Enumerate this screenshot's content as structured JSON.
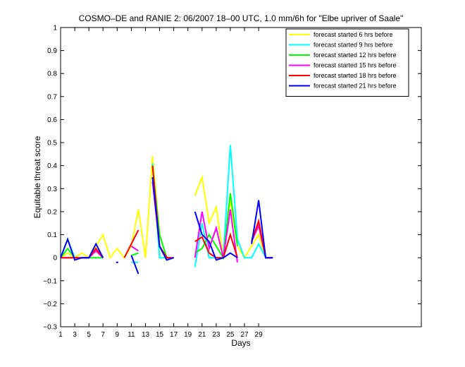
{
  "chart_data": {
    "type": "line",
    "title": "COSMO–DE and RANIE 2: 06/2007 18–00 UTC, 1.0 mm/6h for \"Elbe upriver of Saale\"",
    "xlabel": "Days",
    "ylabel": "Equitable threat score",
    "xlim": [
      1,
      52
    ],
    "ylim": [
      -0.3,
      1
    ],
    "xticks": [
      1,
      3,
      5,
      7,
      9,
      11,
      13,
      15,
      17,
      19,
      21,
      23,
      25,
      27,
      29
    ],
    "yticks": [
      -0.3,
      -0.2,
      -0.1,
      0,
      0.1,
      0.2,
      0.3,
      0.4,
      0.5,
      0.6,
      0.7,
      0.8,
      0.9,
      1
    ],
    "ytick_labels": [
      "−0.3",
      "−0.2",
      "−0.1",
      "0",
      "0.1",
      "0.2",
      "0.3",
      "0.4",
      "0.5",
      "0.6",
      "0.7",
      "0.8",
      "0.9",
      "1"
    ],
    "grid": false,
    "legend_position": "top-right",
    "series": [
      {
        "name": "forecast started 6 hrs before",
        "color": "#ffff00",
        "points": [
          [
            1,
            0.0
          ],
          [
            2,
            0.02
          ],
          [
            3,
            0.0
          ],
          [
            4,
            0.02
          ],
          [
            5,
            0.0
          ],
          [
            6,
            0.05
          ],
          [
            7,
            0.1
          ],
          [
            8,
            0.0
          ],
          [
            9,
            0.04
          ],
          [
            10,
            0.0
          ],
          [
            11,
            0.05
          ],
          [
            12,
            0.21
          ],
          [
            13,
            0.0
          ],
          [
            14,
            0.44
          ],
          [
            15,
            0.1
          ],
          [
            16,
            0.0
          ],
          [
            17,
            0.0
          ],
          null,
          [
            20,
            0.27
          ],
          [
            21,
            0.35
          ],
          [
            22,
            0.15
          ],
          [
            23,
            0.22
          ],
          [
            24,
            0.0
          ],
          [
            25,
            0.25
          ],
          [
            26,
            0.05
          ],
          [
            27,
            0.0
          ],
          [
            28,
            0.05
          ],
          [
            29,
            0.1
          ],
          [
            30,
            0.0
          ],
          [
            31,
            0.0
          ]
        ]
      },
      {
        "name": "forecast started 9 hrs before",
        "color": "#00ffff",
        "points": [
          [
            1,
            0.0
          ],
          [
            2,
            0.08
          ],
          [
            3,
            0.0
          ],
          [
            4,
            0.0
          ],
          [
            5,
            0.0
          ],
          [
            6,
            0.04
          ],
          [
            7,
            0.0
          ],
          null,
          [
            11,
            -0.02
          ],
          [
            12,
            -0.02
          ],
          null,
          [
            14,
            0.41
          ],
          [
            15,
            0.0
          ],
          [
            16,
            0.0
          ],
          [
            17,
            0.0
          ],
          null,
          [
            20,
            -0.04
          ],
          [
            21,
            0.15
          ],
          [
            22,
            0.0
          ],
          [
            23,
            0.0
          ],
          [
            24,
            0.0
          ],
          [
            25,
            0.49
          ],
          [
            26,
            0.08
          ],
          [
            27,
            0.0
          ],
          [
            28,
            0.0
          ],
          [
            29,
            0.06
          ],
          [
            30,
            0.0
          ],
          [
            31,
            0.0
          ]
        ]
      },
      {
        "name": "forecast started 12 hrs before",
        "color": "#00ff00",
        "points": [
          [
            1,
            0.0
          ],
          [
            2,
            0.04
          ],
          [
            3,
            0.0
          ],
          [
            4,
            0.0
          ],
          [
            5,
            0.0
          ],
          [
            6,
            0.0
          ],
          [
            7,
            0.0
          ],
          null,
          [
            11,
            0.01
          ],
          [
            12,
            0.02
          ],
          null,
          [
            14,
            0.4
          ],
          [
            15,
            0.1
          ],
          [
            16,
            0.0
          ],
          [
            17,
            0.0
          ],
          null,
          [
            20,
            0.02
          ],
          [
            21,
            0.04
          ],
          [
            22,
            0.1
          ],
          [
            23,
            0.05
          ],
          [
            24,
            0.0
          ],
          [
            25,
            0.28
          ],
          [
            26,
            0.05
          ],
          null,
          [
            28,
            0.08
          ],
          [
            29,
            0.15
          ],
          [
            30,
            0.0
          ],
          [
            31,
            0.0
          ]
        ]
      },
      {
        "name": "forecast started 15 hrs before",
        "color": "#ff00ff",
        "points": [
          [
            1,
            0.0
          ],
          [
            2,
            0.0
          ],
          [
            3,
            0.0
          ],
          [
            4,
            0.0
          ],
          [
            5,
            0.0
          ],
          [
            6,
            0.03
          ],
          [
            7,
            0.0
          ],
          null,
          [
            11,
            0.05
          ],
          [
            12,
            0.03
          ],
          null,
          [
            14,
            0.33
          ],
          [
            15,
            0.05
          ],
          [
            16,
            0.0
          ],
          [
            17,
            0.0
          ],
          null,
          [
            20,
            0.0
          ],
          [
            21,
            0.2
          ],
          [
            22,
            0.04
          ],
          [
            23,
            0.13
          ],
          [
            24,
            0.0
          ],
          [
            25,
            0.21
          ],
          [
            26,
            -0.02
          ],
          null,
          [
            28,
            0.07
          ],
          [
            29,
            0.14
          ],
          [
            30,
            0.0
          ],
          [
            31,
            0.0
          ]
        ]
      },
      {
        "name": "forecast started 18 hrs before",
        "color": "#ff0000",
        "points": [
          [
            1,
            0.0
          ],
          [
            2,
            0.0
          ],
          [
            3,
            0.0
          ],
          [
            4,
            0.0
          ],
          [
            5,
            0.0
          ],
          [
            6,
            0.04
          ],
          [
            7,
            0.0
          ],
          null,
          [
            10,
            0.0
          ],
          [
            11,
            0.06
          ],
          [
            12,
            0.12
          ],
          null,
          [
            14,
            0.4
          ],
          [
            15,
            0.05
          ],
          [
            16,
            0.0
          ],
          [
            17,
            0.0
          ],
          null,
          [
            20,
            0.07
          ],
          [
            21,
            0.09
          ],
          [
            22,
            0.02
          ],
          [
            23,
            0.0
          ],
          [
            24,
            0.0
          ],
          [
            25,
            0.1
          ],
          [
            26,
            0.0
          ],
          null,
          [
            28,
            0.07
          ],
          [
            29,
            0.16
          ],
          [
            30,
            0.0
          ],
          [
            31,
            0.0
          ]
        ]
      },
      {
        "name": "forecast started 21 hrs before",
        "color": "#0000ff",
        "points": [
          [
            1,
            0.0
          ],
          [
            2,
            0.08
          ],
          [
            3,
            -0.01
          ],
          [
            4,
            0.0
          ],
          [
            5,
            0.0
          ],
          [
            6,
            0.06
          ],
          [
            7,
            0.0
          ],
          null,
          [
            9,
            -0.02
          ],
          null,
          [
            11,
            0.01
          ],
          [
            12,
            -0.07
          ],
          null,
          [
            14,
            0.35
          ],
          [
            15,
            0.05
          ],
          [
            16,
            -0.01
          ],
          [
            17,
            0.0
          ],
          null,
          [
            20,
            0.2
          ],
          [
            21,
            0.1
          ],
          [
            22,
            0.07
          ],
          [
            23,
            -0.01
          ],
          [
            24,
            0.0
          ],
          [
            25,
            0.02
          ],
          [
            26,
            0.0
          ],
          null,
          [
            28,
            0.06
          ],
          [
            29,
            0.25
          ],
          [
            30,
            0.0
          ],
          [
            31,
            0.0
          ]
        ]
      }
    ]
  }
}
